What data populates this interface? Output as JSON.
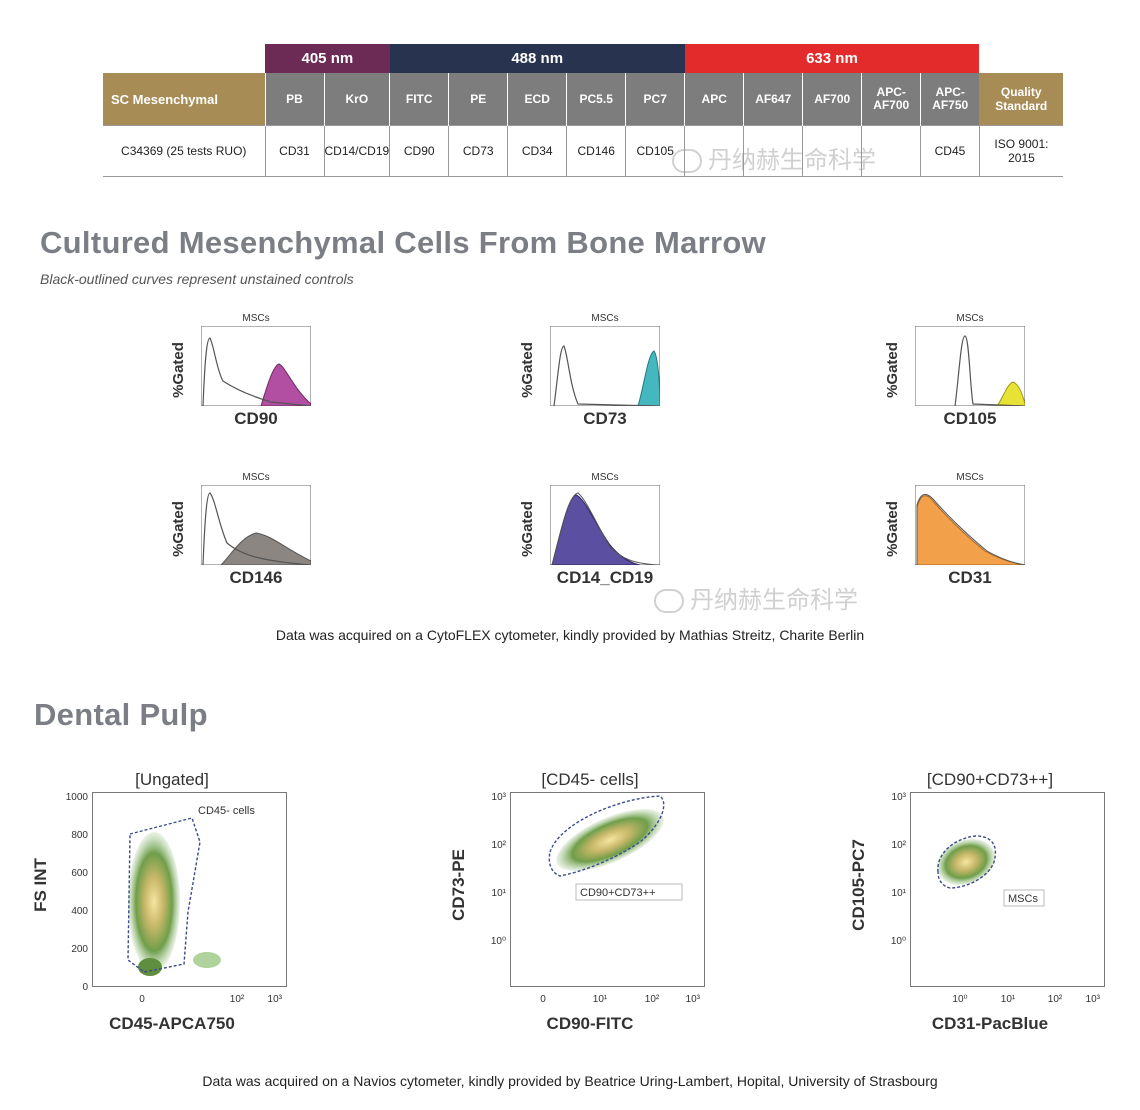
{
  "panel_table": {
    "lasers": [
      {
        "label": "405 nm",
        "color": "#6b2b55",
        "span": 2
      },
      {
        "label": "488 nm",
        "color": "#27334f",
        "span": 5
      },
      {
        "label": "633 nm",
        "color": "#e42b2b",
        "span": 5
      }
    ],
    "name_header": "SC Mesenchymal",
    "quality_header": "Quality Standard",
    "fluorochromes": [
      "PB",
      "KrO",
      "FITC",
      "PE",
      "ECD",
      "PC5.5",
      "PC7",
      "APC",
      "AF647",
      "AF700",
      "APC-AF700",
      "APC-AF750"
    ],
    "row": {
      "product": "C34369 (25 tests RUO)",
      "markers": [
        "CD31",
        "CD14/CD19",
        "CD90",
        "CD73",
        "CD34",
        "CD146",
        "CD105",
        "",
        "",
        "",
        "",
        "CD45"
      ],
      "quality": "ISO 9001: 2015"
    }
  },
  "section1": {
    "title": "Cultured Mesenchymal Cells From Bone Marrow",
    "subtitle": "Black-outlined curves represent unstained controls",
    "histograms": [
      {
        "label": "CD90",
        "panel_title": "MSCs",
        "ylabel": "%Gated",
        "color": "#b34fa3"
      },
      {
        "label": "CD73",
        "panel_title": "MSCs",
        "ylabel": "%Gated",
        "color": "#45b7bf"
      },
      {
        "label": "CD105",
        "panel_title": "MSCs",
        "ylabel": "%Gated",
        "color": "#e8e234"
      },
      {
        "label": "CD146",
        "panel_title": "MSCs",
        "ylabel": "%Gated",
        "color": "#8c8682"
      },
      {
        "label": "CD14_CD19",
        "panel_title": "MSCs",
        "ylabel": "%Gated",
        "color": "#5a4fa0"
      },
      {
        "label": "CD31",
        "panel_title": "MSCs",
        "ylabel": "%Gated",
        "color": "#f2a04a"
      }
    ],
    "credit": "Data was acquired on a CytoFLEX cytometer, kindly provided by Mathias Streitz, Charite Berlin"
  },
  "section2": {
    "title": "Dental Pulp",
    "plots": [
      {
        "title": "[Ungated]",
        "xlabel": "CD45-APCA750",
        "ylabel": "FS INT",
        "gate": "CD45- cells",
        "yticks": [
          "1000",
          "800",
          "600",
          "400",
          "200",
          "0"
        ],
        "xticks": [
          "0",
          "10²",
          "10³"
        ]
      },
      {
        "title": "[CD45- cells]",
        "xlabel": "CD90-FITC",
        "ylabel": "CD73-PE",
        "gate": "CD90+CD73++",
        "yticks": [
          "10³",
          "10²",
          "10¹",
          "10⁰"
        ],
        "xticks": [
          "0",
          "10¹",
          "10²",
          "10³"
        ]
      },
      {
        "title": "[CD90+CD73++]",
        "xlabel": "CD31-PacBlue",
        "ylabel": "CD105-PC7",
        "gate": "MSCs",
        "yticks": [
          "10³",
          "10²",
          "10¹",
          "10⁰"
        ],
        "xticks": [
          "10⁰",
          "10¹",
          "10²",
          "10³"
        ]
      }
    ],
    "credit": "Data was acquired on a Navios cytometer, kindly provided by Beatrice Uring-Lambert, Hopital, University of Strasbourg"
  },
  "watermark": "丹纳赫生命科学"
}
